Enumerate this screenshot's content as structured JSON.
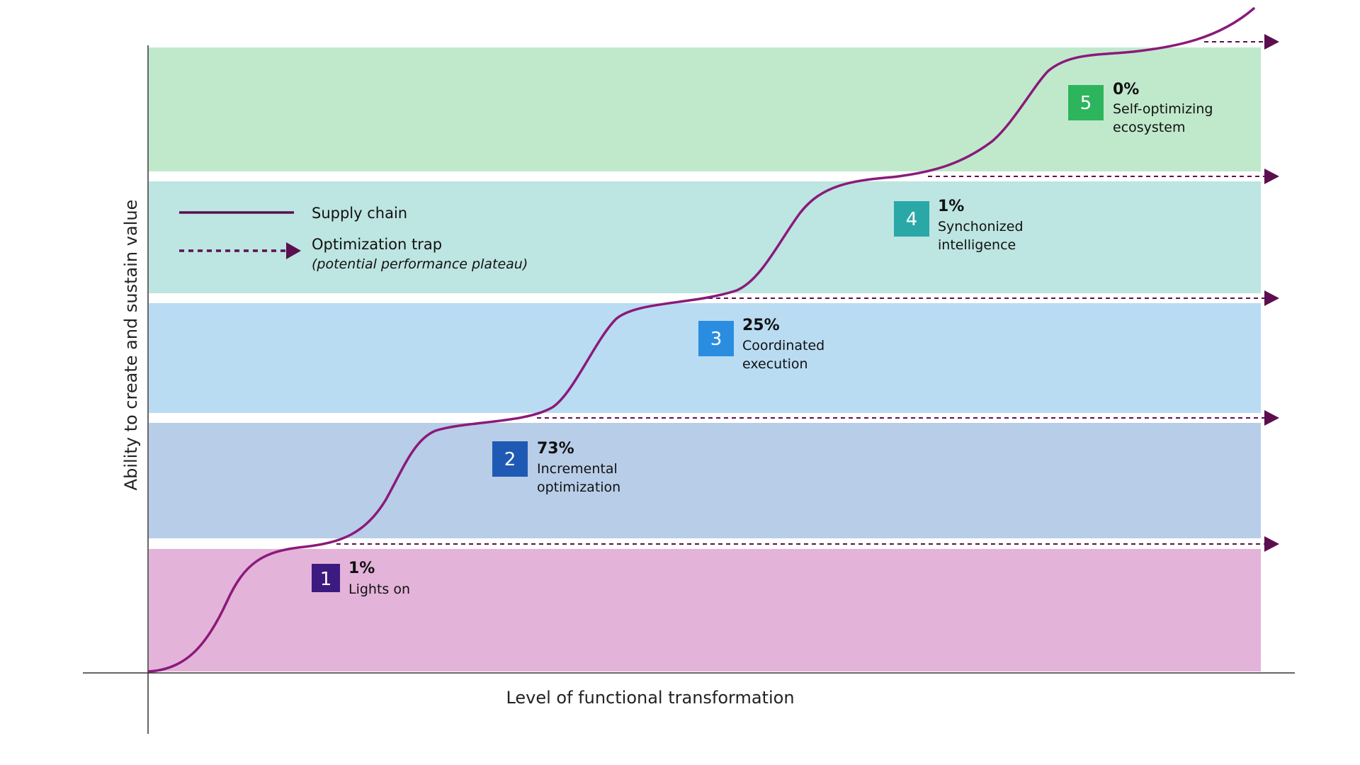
{
  "y_axis_label": "Ability to create and sustain value",
  "x_axis_label": "Level of functional transformation",
  "legend": {
    "supply_chain": "Supply chain",
    "optimization_trap": "Optimization trap",
    "optimization_trap_note": "(potential performance plateau)"
  },
  "colors": {
    "curve": "#8b1a7a",
    "trap": "#5b0f4f",
    "legend_line": "#5b0f4f",
    "axis": "#333333"
  },
  "stages": [
    {
      "number": "1",
      "percent": "1%",
      "name_lines": [
        "Lights on"
      ],
      "band_color": "#e4b3d9",
      "badge_color": "#3d1a80"
    },
    {
      "number": "2",
      "percent": "73%",
      "name_lines": [
        "Incremental",
        "optimization"
      ],
      "band_color": "#b8cde8",
      "badge_color": "#1e5ab3"
    },
    {
      "number": "3",
      "percent": "25%",
      "name_lines": [
        "Coordinated",
        "execution"
      ],
      "band_color": "#b9dcf3",
      "badge_color": "#2a8de0"
    },
    {
      "number": "4",
      "percent": "1%",
      "name_lines": [
        "Synchonized",
        "intelligence"
      ],
      "band_color": "#bde5e1",
      "badge_color": "#2aa8a8"
    },
    {
      "number": "5",
      "percent": "0%",
      "name_lines": [
        "Self-optimizing",
        "ecosystem"
      ],
      "band_color": "#c0e9cc",
      "badge_color": "#2db55d"
    }
  ]
}
